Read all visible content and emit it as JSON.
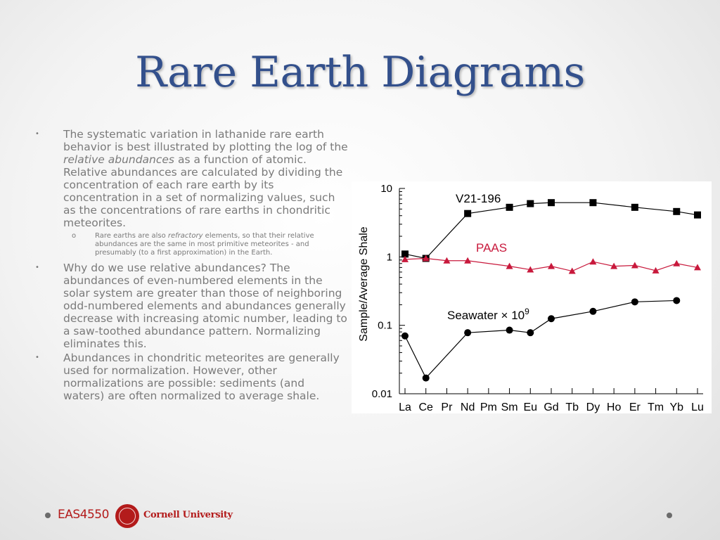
{
  "slide": {
    "title": "Rare Earth Diagrams",
    "bullets": [
      {
        "marker": "•",
        "runs": [
          "The systematic variation in lathanide rare earth behavior is best illustrated by plotting the log of the ",
          "relative abundances",
          " as a function of atomic. Relative abundances are calculated by dividing the concentration of each rare earth by its concentration in a set of normalizing values, such as the concentrations of rare earths in chondritic meteorites."
        ],
        "sub": {
          "marker": "o",
          "runs": [
            "Rare earths are also ",
            "refractory",
            " elements, so that their relative abundances are the same in most primitive meteorites - and presumably (to a first approximation) in the Earth."
          ]
        }
      },
      {
        "marker": "•",
        "text": "Why do we use relative abundances? The abundances of even-numbered elements in the solar system are greater than those of neighboring odd-numbered elements and abundances generally decrease with increasing atomic number, leading to a saw-toothed abundance pattern. Normalizing eliminates this."
      },
      {
        "marker": "•",
        "text": "Abundances in chondritic meteorites are generally used for normalization. However, other normalizations are possible: sediments (and waters) are often normalized to average shale."
      }
    ],
    "footer": {
      "course": "EAS4550",
      "university": "Cornell University"
    }
  },
  "chart_data": {
    "type": "line",
    "ylabel": "Sample/Average Shale",
    "yscale": "log",
    "ylim": [
      0.01,
      10
    ],
    "yticks": [
      "10",
      "1",
      "0.1",
      "0.01"
    ],
    "categories": [
      "La",
      "Ce",
      "Pr",
      "Nd",
      "Pm",
      "Sm",
      "Eu",
      "Gd",
      "Tb",
      "Dy",
      "Ho",
      "Er",
      "Tm",
      "Yb",
      "Lu"
    ],
    "series": [
      {
        "name": "V21-196",
        "marker": "square",
        "color": "#000000",
        "values": [
          1.1,
          0.95,
          null,
          4.3,
          null,
          5.3,
          6.0,
          6.2,
          null,
          6.2,
          null,
          5.3,
          null,
          4.6,
          4.1
        ]
      },
      {
        "name": "PAAS",
        "marker": "triangle",
        "color": "#c8193c",
        "values": [
          0.92,
          0.95,
          0.88,
          0.88,
          null,
          0.73,
          0.65,
          0.73,
          0.62,
          0.85,
          0.73,
          0.75,
          0.63,
          0.8,
          0.7
        ]
      },
      {
        "name": "Seawater",
        "label_text": "Seawater",
        "label_suffix": "× 10",
        "label_exp": "9",
        "marker": "circle",
        "color": "#000000",
        "values": [
          0.07,
          0.017,
          null,
          0.078,
          null,
          0.085,
          0.078,
          0.125,
          null,
          0.16,
          null,
          0.22,
          null,
          0.23,
          null
        ]
      }
    ]
  }
}
